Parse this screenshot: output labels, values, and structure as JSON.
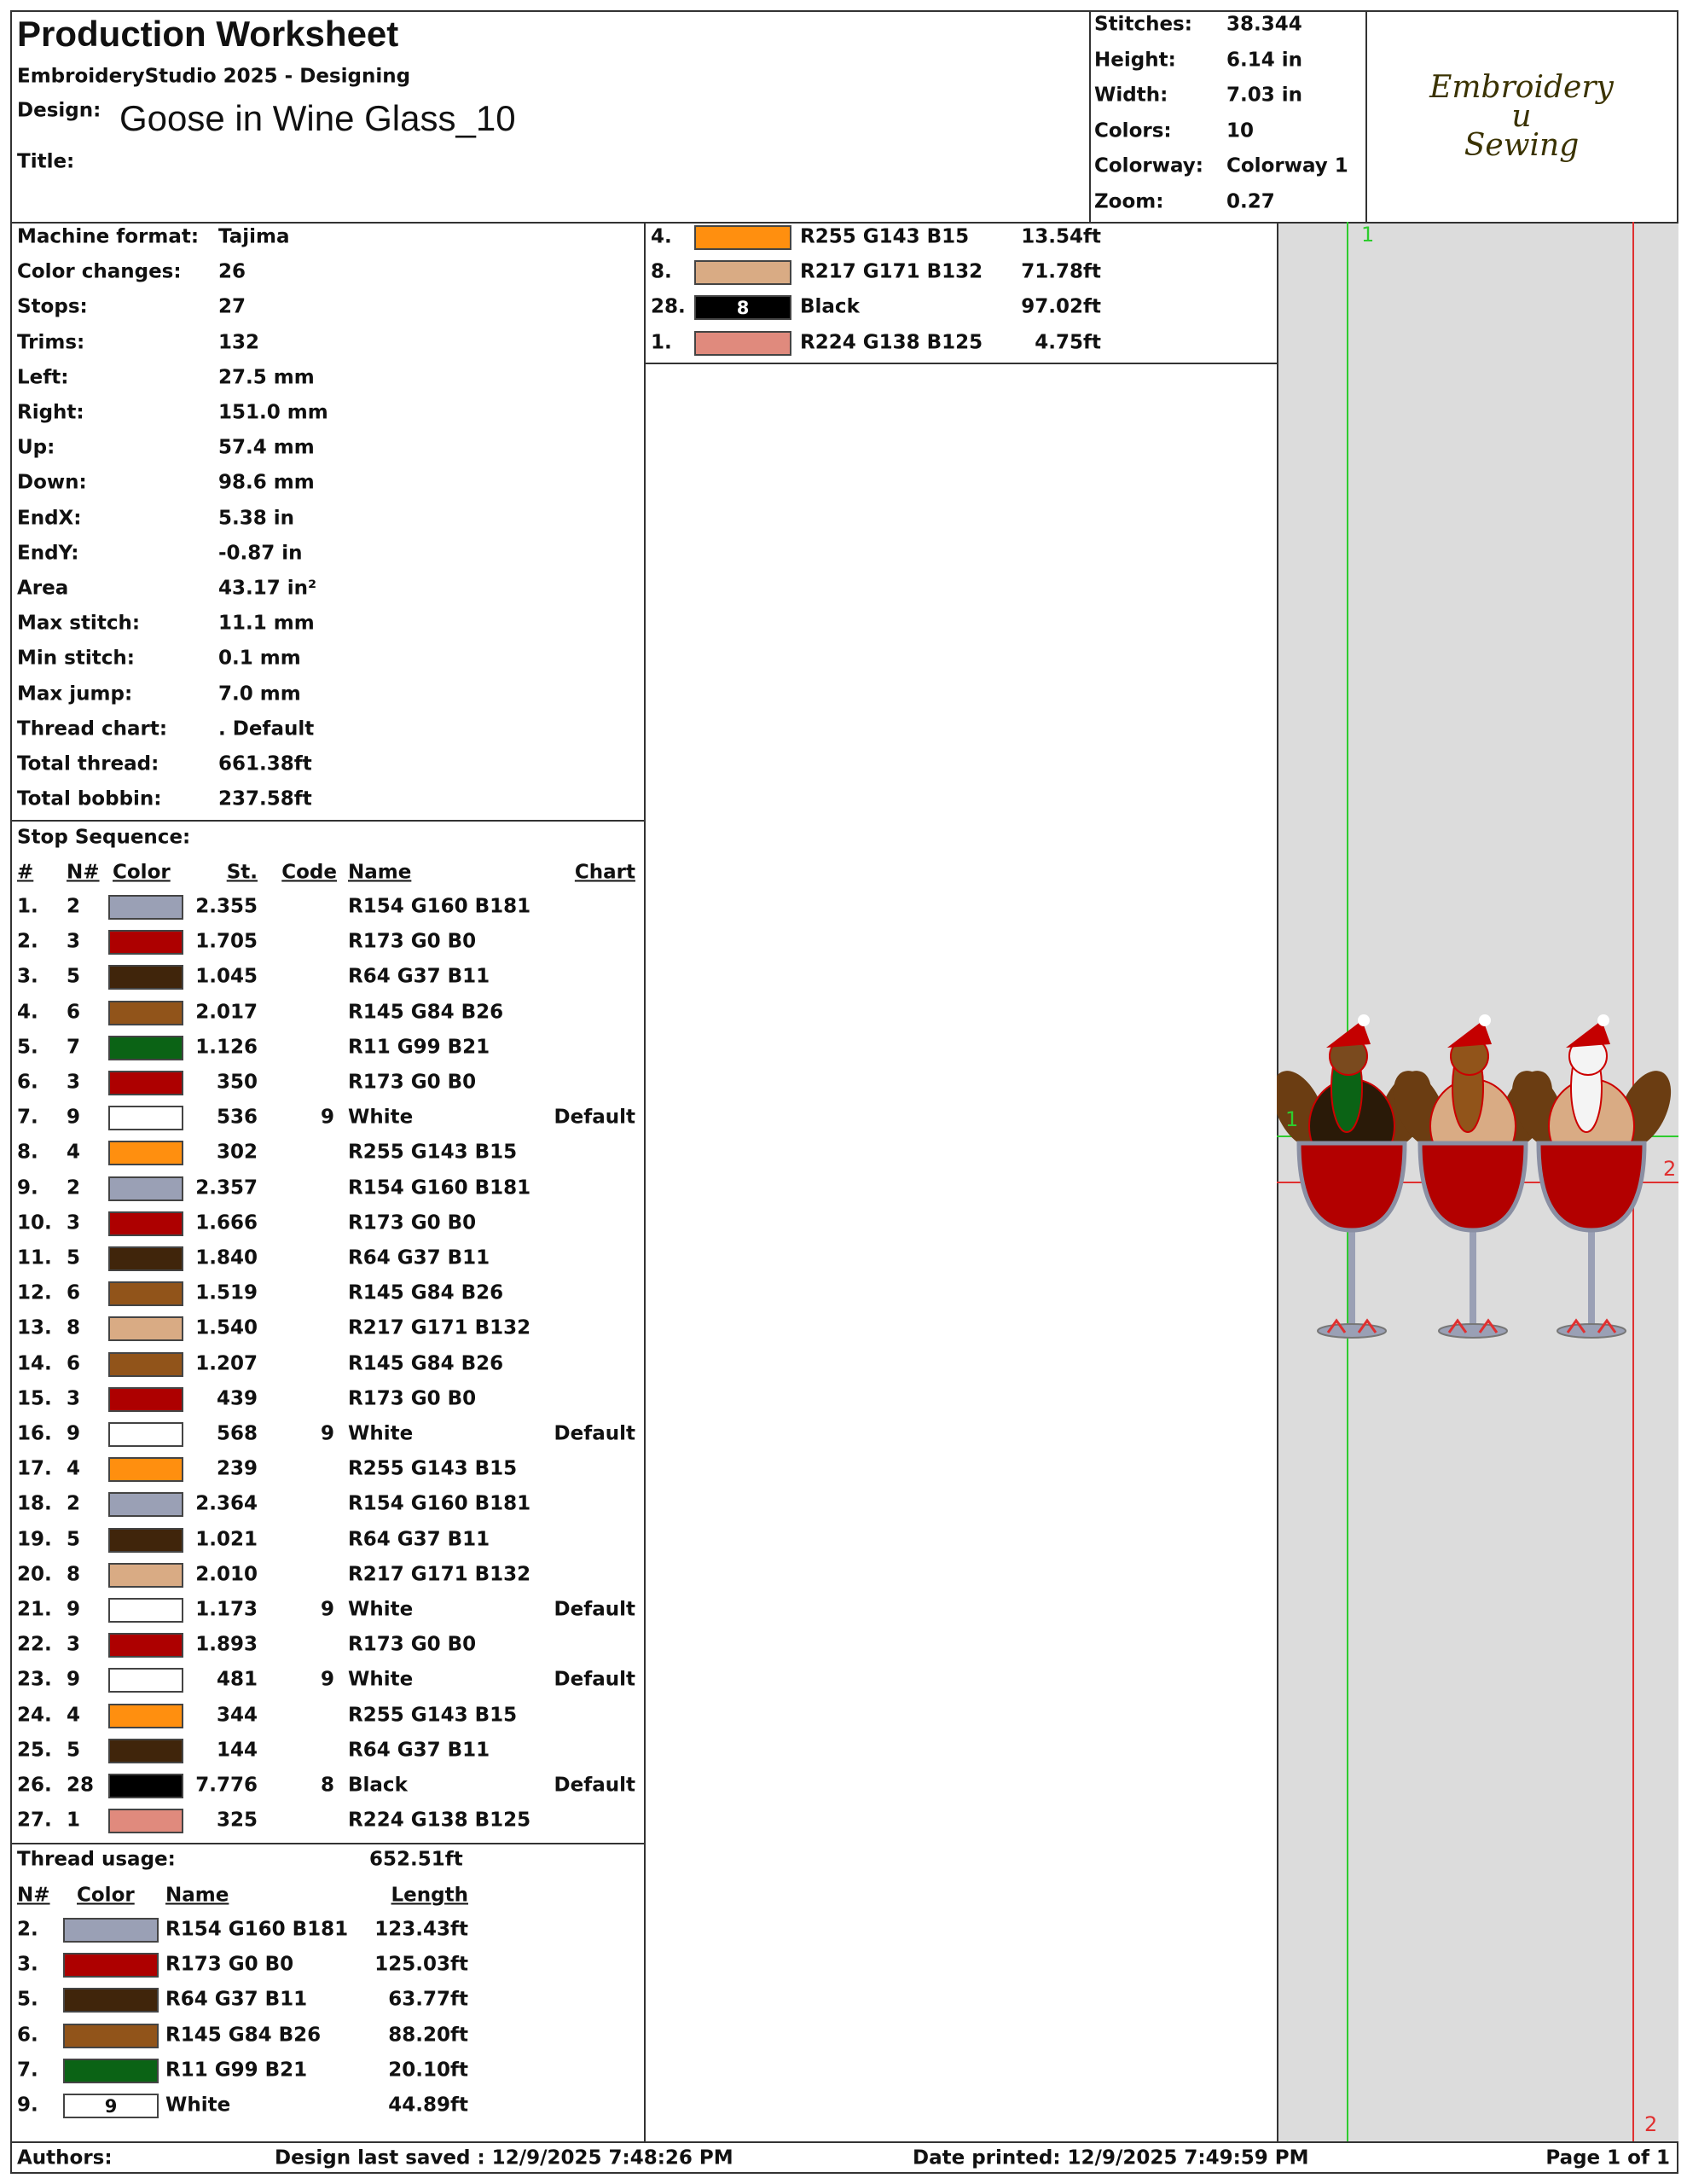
{
  "header": {
    "title": "Production Worksheet",
    "software": "EmbroideryStudio 2025 - Designing",
    "design_label": "Design:",
    "design": "Goose in Wine Glass_10",
    "title_label": "Title:"
  },
  "summary": [
    {
      "label": "Stitches:",
      "value": "38.344"
    },
    {
      "label": "Height:",
      "value": "6.14 in"
    },
    {
      "label": "Width:",
      "value": "7.03 in"
    },
    {
      "label": "Colors:",
      "value": "10"
    },
    {
      "label": "Colorway:",
      "value": "Colorway 1"
    },
    {
      "label": "Zoom:",
      "value": "0.27"
    }
  ],
  "logo": [
    "Embroidery",
    "u",
    "Sewing"
  ],
  "machine": [
    {
      "label": "Machine format:",
      "value": "Tajima"
    },
    {
      "label": "Color changes:",
      "value": "26"
    },
    {
      "label": "Stops:",
      "value": "27"
    },
    {
      "label": "Trims:",
      "value": "132"
    },
    {
      "label": "Left:",
      "value": "27.5 mm"
    },
    {
      "label": "Right:",
      "value": "151.0 mm"
    },
    {
      "label": "Up:",
      "value": "57.4 mm"
    },
    {
      "label": "Down:",
      "value": "98.6 mm"
    },
    {
      "label": "EndX:",
      "value": "5.38 in"
    },
    {
      "label": "EndY:",
      "value": "-0.87 in"
    },
    {
      "label": "Area",
      "value": "43.17 in²"
    },
    {
      "label": "Max stitch:",
      "value": "11.1 mm"
    },
    {
      "label": "Min stitch:",
      "value": "0.1 mm"
    },
    {
      "label": "Max jump:",
      "value": "7.0 mm"
    },
    {
      "label": "Thread chart:",
      "value": ". Default"
    },
    {
      "label": "Total thread:",
      "value": "661.38ft"
    },
    {
      "label": "Total bobbin:",
      "value": "237.58ft"
    }
  ],
  "stop_sequence": {
    "title": "Stop Sequence:",
    "columns": [
      "#",
      "N#",
      "Color",
      "St.",
      "Code",
      "Name",
      "Chart"
    ],
    "rows": [
      {
        "num": "1.",
        "needle": "2",
        "color": "#9aa0b5",
        "stitches": "2.355",
        "name": "R154 G160 B181"
      },
      {
        "num": "2.",
        "needle": "3",
        "color": "#ad0000",
        "stitches": "1.705",
        "name": "R173 G0 B0"
      },
      {
        "num": "3.",
        "needle": "5",
        "color": "#40250b",
        "stitches": "1.045",
        "name": "R64 G37 B11"
      },
      {
        "num": "4.",
        "needle": "6",
        "color": "#91541a",
        "stitches": "2.017",
        "name": "R145 G84 B26"
      },
      {
        "num": "5.",
        "needle": "7",
        "color": "#0b6315",
        "stitches": "1.126",
        "name": "R11 G99 B21"
      },
      {
        "num": "6.",
        "needle": "3",
        "color": "#ad0000",
        "stitches": "350",
        "name": "R173 G0 B0"
      },
      {
        "num": "7.",
        "needle": "9",
        "color": "#ffffff",
        "stitches": "536",
        "code": "9",
        "name": "White",
        "chart": "Default"
      },
      {
        "num": "8.",
        "needle": "4",
        "color": "#ff8f0f",
        "stitches": "302",
        "name": "R255 G143 B15"
      },
      {
        "num": "9.",
        "needle": "2",
        "color": "#9aa0b5",
        "stitches": "2.357",
        "name": "R154 G160 B181"
      },
      {
        "num": "10.",
        "needle": "3",
        "color": "#ad0000",
        "stitches": "1.666",
        "name": "R173 G0 B0"
      },
      {
        "num": "11.",
        "needle": "5",
        "color": "#40250b",
        "stitches": "1.840",
        "name": "R64 G37 B11"
      },
      {
        "num": "12.",
        "needle": "6",
        "color": "#91541a",
        "stitches": "1.519",
        "name": "R145 G84 B26"
      },
      {
        "num": "13.",
        "needle": "8",
        "color": "#d9ab84",
        "stitches": "1.540",
        "name": "R217 G171 B132"
      },
      {
        "num": "14.",
        "needle": "6",
        "color": "#91541a",
        "stitches": "1.207",
        "name": "R145 G84 B26"
      },
      {
        "num": "15.",
        "needle": "3",
        "color": "#ad0000",
        "stitches": "439",
        "name": "R173 G0 B0"
      },
      {
        "num": "16.",
        "needle": "9",
        "color": "#ffffff",
        "stitches": "568",
        "code": "9",
        "name": "White",
        "chart": "Default"
      },
      {
        "num": "17.",
        "needle": "4",
        "color": "#ff8f0f",
        "stitches": "239",
        "name": "R255 G143 B15"
      },
      {
        "num": "18.",
        "needle": "2",
        "color": "#9aa0b5",
        "stitches": "2.364",
        "name": "R154 G160 B181"
      },
      {
        "num": "19.",
        "needle": "5",
        "color": "#40250b",
        "stitches": "1.021",
        "name": "R64 G37 B11"
      },
      {
        "num": "20.",
        "needle": "8",
        "color": "#d9ab84",
        "stitches": "2.010",
        "name": "R217 G171 B132"
      },
      {
        "num": "21.",
        "needle": "9",
        "color": "#ffffff",
        "stitches": "1.173",
        "code": "9",
        "name": "White",
        "chart": "Default"
      },
      {
        "num": "22.",
        "needle": "3",
        "color": "#ad0000",
        "stitches": "1.893",
        "name": "R173 G0 B0"
      },
      {
        "num": "23.",
        "needle": "9",
        "color": "#ffffff",
        "stitches": "481",
        "code": "9",
        "name": "White",
        "chart": "Default"
      },
      {
        "num": "24.",
        "needle": "4",
        "color": "#ff8f0f",
        "stitches": "344",
        "name": "R255 G143 B15"
      },
      {
        "num": "25.",
        "needle": "5",
        "color": "#40250b",
        "stitches": "144",
        "name": "R64 G37 B11"
      },
      {
        "num": "26.",
        "needle": "28",
        "color": "#000000",
        "stitches": "7.776",
        "code": "8",
        "name": "Black",
        "chart": "Default"
      },
      {
        "num": "27.",
        "needle": "1",
        "color": "#e08a7d",
        "stitches": "325",
        "name": "R224 G138 B125"
      }
    ]
  },
  "thread_usage": {
    "title": "Thread usage:",
    "total": "652.51ft",
    "columns": [
      "N#",
      "Color",
      "Name",
      "Length"
    ],
    "rows": [
      {
        "needle": "2.",
        "color": "#9aa0b5",
        "name": "R154 G160 B181",
        "length": "123.43ft"
      },
      {
        "needle": "3.",
        "color": "#ad0000",
        "name": "R173 G0 B0",
        "length": "125.03ft"
      },
      {
        "needle": "5.",
        "color": "#40250b",
        "name": "R64 G37 B11",
        "length": "63.77ft"
      },
      {
        "needle": "6.",
        "color": "#91541a",
        "name": "R145 G84 B26",
        "length": "88.20ft"
      },
      {
        "needle": "7.",
        "color": "#0b6315",
        "name": "R11 G99 B21",
        "length": "20.10ft"
      },
      {
        "needle": "9.",
        "color": "#ffffff",
        "swatch_label": "9",
        "name": "White",
        "length": "44.89ft"
      },
      {
        "needle": "4.",
        "color": "#ff8f0f",
        "name": "R255 G143 B15",
        "length": "13.54ft"
      },
      {
        "needle": "8.",
        "color": "#d9ab84",
        "name": "R217 G171 B132",
        "length": "71.78ft"
      },
      {
        "needle": "28.",
        "color": "#000000",
        "swatch_label": "8",
        "name": "Black",
        "length": "97.02ft"
      },
      {
        "needle": "1.",
        "color": "#e08a7d",
        "name": "R224 G138 B125",
        "length": "4.75ft"
      }
    ]
  },
  "preview": {
    "labels": [
      "1",
      "2",
      "1",
      "2"
    ]
  },
  "footer": {
    "authors": "Authors:",
    "saved": "Design last saved : 12/9/2025 7:48:26 PM",
    "printed": "Date printed: 12/9/2025 7:49:59 PM",
    "page": "Page 1 of 1"
  }
}
